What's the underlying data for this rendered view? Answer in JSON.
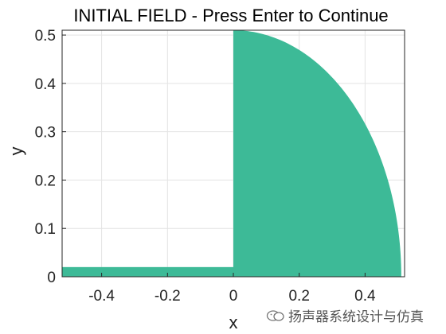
{
  "title": "INITIAL FIELD - Press Enter to Continue",
  "watermark_text": "扬声器系统设计与仿真",
  "chart_data": {
    "type": "area",
    "title": "INITIAL FIELD - Press Enter to Continue",
    "xlabel": "x",
    "ylabel": "y",
    "xlim": [
      -0.52,
      0.52
    ],
    "ylim": [
      0,
      0.51
    ],
    "xticks": [
      -0.4,
      -0.2,
      0,
      0.2,
      0.4
    ],
    "xtick_labels": [
      "-0.4",
      "-0.2",
      "0",
      "0.2",
      "0.4"
    ],
    "yticks": [
      0,
      0.1,
      0.2,
      0.3,
      0.4,
      0.5
    ],
    "ytick_labels": [
      "0",
      "0.1",
      "0.2",
      "0.3",
      "0.4",
      "0.5"
    ],
    "grid": true,
    "fill_color": "#3dba97",
    "regions": [
      {
        "shape": "rectangle",
        "x": [
          -0.52,
          0
        ],
        "y": [
          0,
          0.02
        ]
      },
      {
        "shape": "quarter-circle",
        "center": [
          0,
          0
        ],
        "radius": 0.51
      }
    ]
  }
}
